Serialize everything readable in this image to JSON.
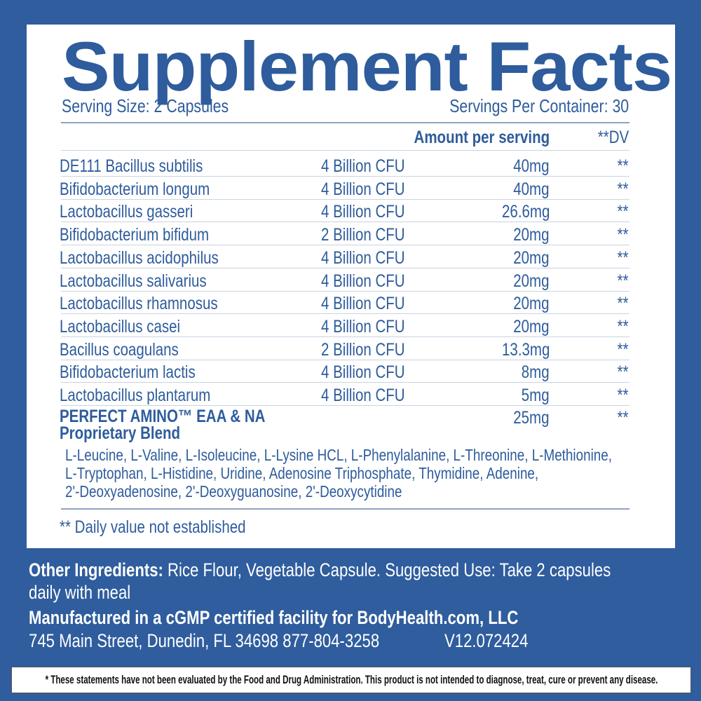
{
  "title": "Supplement Facts",
  "serving_size": "Serving Size: 2 Capsules",
  "servings_per_container": "Servings Per Container: 30",
  "header": {
    "amount": "Amount per serving",
    "dv": "**DV"
  },
  "rows": [
    {
      "name": "DE111 Bacillus subtilis",
      "cfu": "4 Billion CFU",
      "amount": "40mg",
      "dv": "**"
    },
    {
      "name": "Bifidobacterium longum",
      "cfu": "4 Billion CFU",
      "amount": "40mg",
      "dv": "**"
    },
    {
      "name": "Lactobacillus gasseri",
      "cfu": "4 Billion CFU",
      "amount": "26.6mg",
      "dv": "**"
    },
    {
      "name": "Bifidobacterium bifidum",
      "cfu": "2 Billion CFU",
      "amount": "20mg",
      "dv": "**"
    },
    {
      "name": "Lactobacillus acidophilus",
      "cfu": "4 Billion CFU",
      "amount": "20mg",
      "dv": "**"
    },
    {
      "name": "Lactobacillus salivarius",
      "cfu": "4 Billion CFU",
      "amount": "20mg",
      "dv": "**"
    },
    {
      "name": "Lactobacillus rhamnosus",
      "cfu": "4 Billion CFU",
      "amount": "20mg",
      "dv": "**"
    },
    {
      "name": "Lactobacillus casei",
      "cfu": "4 Billion CFU",
      "amount": "20mg",
      "dv": "**"
    },
    {
      "name": "Bacillus coagulans",
      "cfu": "2 Billion CFU",
      "amount": "13.3mg",
      "dv": "**"
    },
    {
      "name": "Bifidobacterium lactis",
      "cfu": "4 Billion CFU",
      "amount": "8mg",
      "dv": "**"
    },
    {
      "name": "Lactobacillus plantarum",
      "cfu": "4 Billion CFU",
      "amount": "5mg",
      "dv": "**"
    }
  ],
  "blend": {
    "name_line1": "PERFECT AMINO™ EAA & NA",
    "name_line2": "Proprietary Blend",
    "amount": "25mg",
    "dv": "**",
    "ingredients": [
      "L-Leucine, L-Valine, L-Isoleucine, L-Lysine HCL, L-Phenylalanine, L-Threonine, L-Methionine,",
      "L-Tryptophan, L-Histidine, Uridine, Adenosine Triphosphate, Thymidine, Adenine,",
      "2'-Deoxyadenosine, 2'-Deoxyguanosine, 2'-Deoxycytidine"
    ]
  },
  "footnote": "** Daily value not established",
  "other": {
    "label": "Other Ingredients:",
    "text": " Rice Flour, Vegetable Capsule. Suggested Use: Take 2 capsules",
    "text2": "daily with meal"
  },
  "manufactured": "Manufactured in a cGMP certified facility for  BodyHealth.com, LLC",
  "address": "745 Main Street, Dunedin, FL 34698 877-804-3258",
  "version": "V12.072424",
  "disclaimer": "* These statements have not been evaluated by the Food and Drug Administration. This product is not intended to diagnose, treat, cure or prevent any disease.",
  "colors": {
    "background": "#2f5d9e",
    "text": "#2e5c9c"
  }
}
